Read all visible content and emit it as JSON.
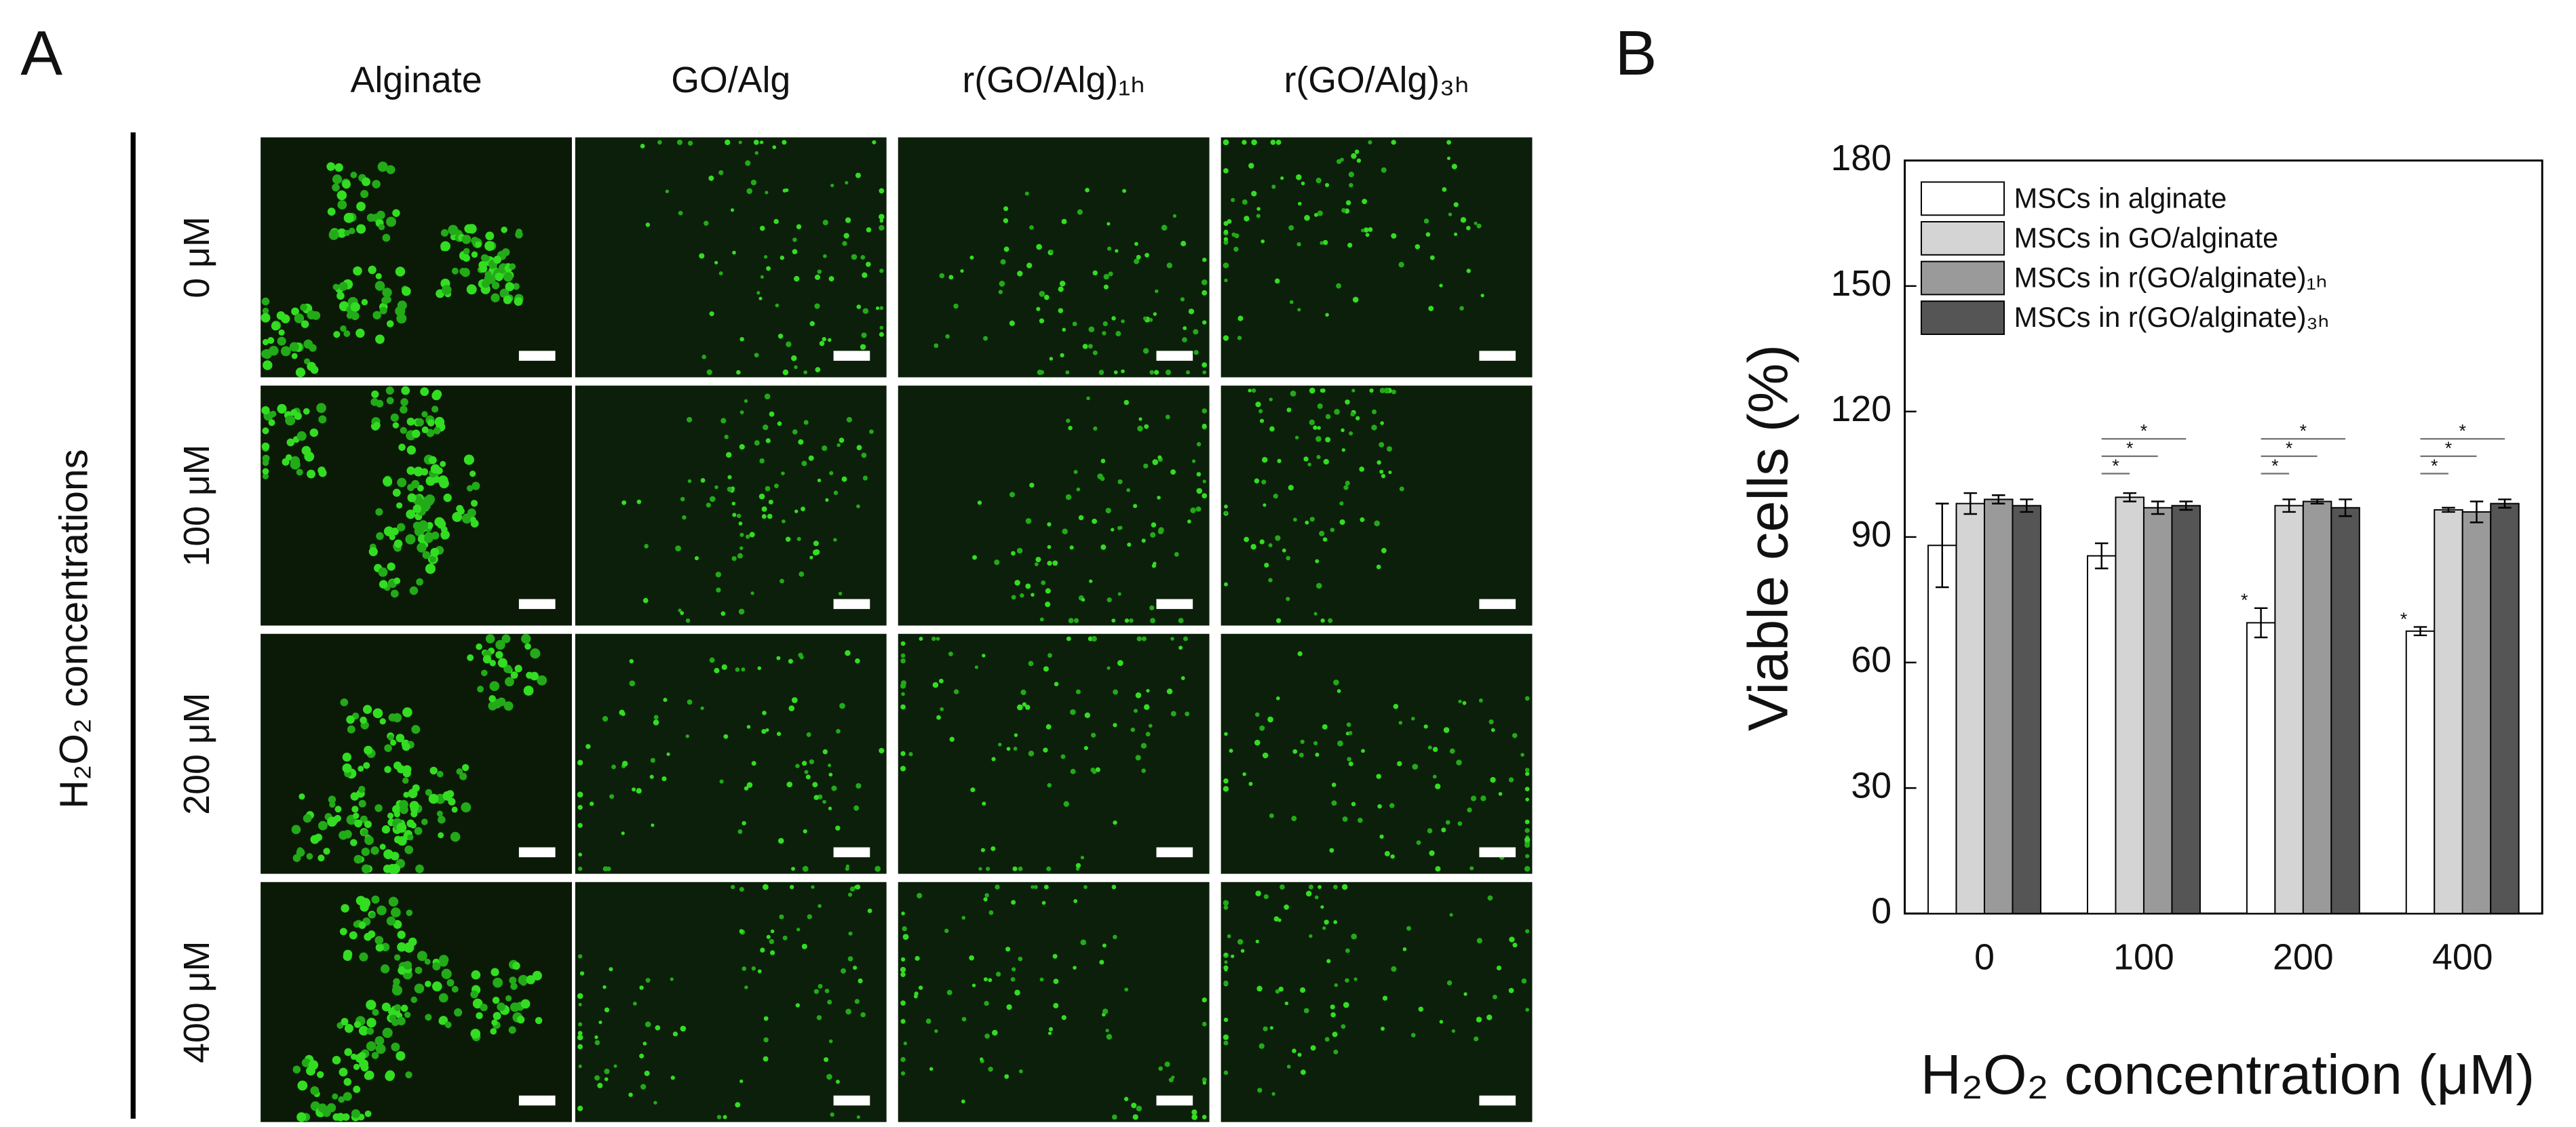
{
  "panel_a": {
    "label": "A",
    "columns": [
      "Alginate",
      "GO/Alg",
      "r(GO/Alg)₁ₕ",
      "r(GO/Alg)₃ₕ"
    ],
    "rows": [
      "0 μM",
      "100 μM",
      "200 μM",
      "400 μM"
    ],
    "row_axis_label": "H₂O₂ concentrations"
  },
  "chart_data": {
    "type": "bar",
    "panel_label": "B",
    "y_label": "Viable cells (%)",
    "x_label": "H₂O₂ concentration (μM)",
    "categories": [
      "0",
      "100",
      "200",
      "400"
    ],
    "series": [
      {
        "name": "MSCs in alginate",
        "color": "#ffffff",
        "values": [
          88,
          85.5,
          69.5,
          67.5
        ],
        "errors": [
          10,
          3,
          3.5,
          1
        ],
        "annotations": [
          null,
          null,
          "*",
          "*"
        ]
      },
      {
        "name": "MSCs in GO/alginate",
        "color": "#d4d4d4",
        "values": [
          98,
          99.5,
          97.5,
          96.5
        ],
        "errors": [
          2.5,
          1,
          1.5,
          0.5
        ]
      },
      {
        "name": "MSCs in r(GO/alginate)₁ₕ",
        "color": "#9a9a9a",
        "values": [
          99,
          97,
          98.5,
          96
        ],
        "errors": [
          1,
          1.5,
          0.5,
          2.5
        ]
      },
      {
        "name": "MSCs in r(GO/alginate)₃ₕ",
        "color": "#555555",
        "values": [
          97.5,
          97.5,
          97,
          98
        ],
        "errors": [
          1.5,
          1,
          2,
          1
        ]
      }
    ],
    "significance": [
      {
        "category": 1,
        "from": 0,
        "to": 1,
        "label": "*"
      },
      {
        "category": 1,
        "from": 0,
        "to": 2,
        "label": "*"
      },
      {
        "category": 1,
        "from": 0,
        "to": 3,
        "label": "*"
      },
      {
        "category": 2,
        "from": 0,
        "to": 1,
        "label": "*"
      },
      {
        "category": 2,
        "from": 0,
        "to": 2,
        "label": "*"
      },
      {
        "category": 2,
        "from": 0,
        "to": 3,
        "label": "*"
      },
      {
        "category": 3,
        "from": 0,
        "to": 1,
        "label": "*"
      },
      {
        "category": 3,
        "from": 0,
        "to": 2,
        "label": "*"
      },
      {
        "category": 3,
        "from": 0,
        "to": 3,
        "label": "*"
      }
    ],
    "ylim": [
      0,
      180
    ],
    "yticks": [
      0,
      30,
      60,
      90,
      120,
      150,
      180
    ],
    "grid": false,
    "legend": "top-left"
  }
}
